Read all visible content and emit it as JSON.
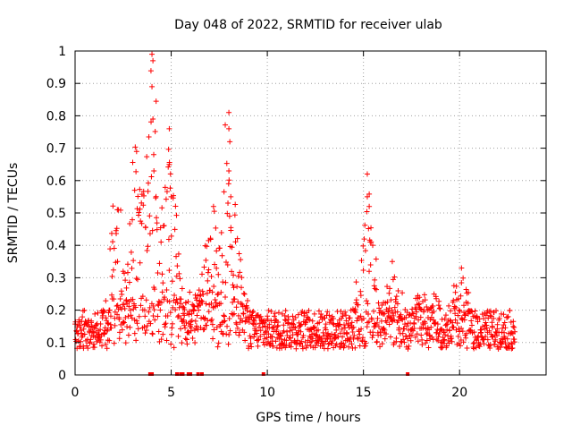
{
  "chart_data": {
    "type": "scatter",
    "title": "Day 048 of 2022, SRMTID for receiver ulab",
    "xlabel": "GPS time / hours",
    "ylabel": "SRMTID / TECUs",
    "xlim": [
      0,
      24.5
    ],
    "ylim": [
      0,
      1
    ],
    "xticks": [
      0,
      5,
      10,
      15,
      20
    ],
    "yticks": [
      0,
      0.1,
      0.2,
      0.3,
      0.4,
      0.5,
      0.6,
      0.7,
      0.8,
      0.9,
      1
    ],
    "xtick_labels": [
      "0",
      "5",
      "10",
      "15",
      "20"
    ],
    "ytick_labels": [
      "0",
      "0.1",
      "0.2",
      "0.3",
      "0.4",
      "0.5",
      "0.6",
      "0.7",
      "0.8",
      "0.9",
      "1"
    ],
    "grid": true,
    "marker": "+",
    "color": "#ff0000",
    "series": [
      {
        "name": "SRMTID",
        "x_start": 0.0,
        "x_end": 22.9,
        "baseline_note": "dense noise about 0.08-0.22 TECU across the day",
        "peaks": [
          {
            "x": 2.2,
            "y": 0.51
          },
          {
            "x": 3.2,
            "y": 0.69
          },
          {
            "x": 3.1,
            "y": 0.57
          },
          {
            "x": 4.0,
            "y": 0.99
          },
          {
            "x": 4.05,
            "y": 0.97
          },
          {
            "x": 4.0,
            "y": 0.89
          },
          {
            "x": 4.05,
            "y": 0.79
          },
          {
            "x": 4.1,
            "y": 0.63
          },
          {
            "x": 4.9,
            "y": 0.76
          },
          {
            "x": 4.9,
            "y": 0.65
          },
          {
            "x": 5.0,
            "y": 0.55
          },
          {
            "x": 7.2,
            "y": 0.52
          },
          {
            "x": 8.0,
            "y": 0.81
          },
          {
            "x": 8.0,
            "y": 0.76
          },
          {
            "x": 8.05,
            "y": 0.72
          },
          {
            "x": 8.0,
            "y": 0.63
          },
          {
            "x": 8.1,
            "y": 0.55
          },
          {
            "x": 15.2,
            "y": 0.62
          },
          {
            "x": 15.2,
            "y": 0.55
          },
          {
            "x": 15.3,
            "y": 0.52
          },
          {
            "x": 16.5,
            "y": 0.35
          },
          {
            "x": 20.1,
            "y": 0.33
          }
        ],
        "zero_points_x": [
          3.9,
          4.0,
          5.3,
          5.5,
          5.6,
          5.9,
          6.0,
          6.4,
          6.6,
          9.8,
          17.3
        ]
      }
    ]
  }
}
